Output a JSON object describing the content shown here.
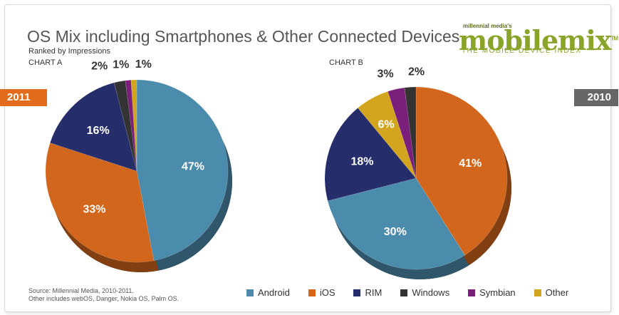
{
  "header": {
    "title": "OS Mix including Smartphones & Other Connected Devices",
    "subtitle": "Ranked by Impressions"
  },
  "logo": {
    "small": "millennial media's",
    "main": "mobilemix",
    "tm": "TM",
    "tagline": "THE MOBILE DEVICE INDEX"
  },
  "footer": {
    "source_line1": "Source: Millennial Media, 2010-2011.",
    "source_line2": "Other includes webOS, Danger, Nokia OS, Palm OS."
  },
  "legend": [
    {
      "name": "Android",
      "color": "#4b8bab"
    },
    {
      "name": "iOS",
      "color": "#d2661c"
    },
    {
      "name": "RIM",
      "color": "#252d6b"
    },
    {
      "name": "Windows",
      "color": "#333333"
    },
    {
      "name": "Symbian",
      "color": "#7a1f7a"
    },
    {
      "name": "Other",
      "color": "#d3a51e"
    }
  ],
  "chart_data": [
    {
      "type": "pie",
      "title": "CHART A",
      "year": "2011",
      "categories": [
        "Android",
        "iOS",
        "RIM",
        "Windows",
        "Symbian",
        "Other"
      ],
      "values": [
        47,
        33,
        16,
        2,
        1,
        1
      ],
      "labels": [
        "47%",
        "33%",
        "16%",
        "2%",
        "1%",
        "1%"
      ]
    },
    {
      "type": "pie",
      "title": "CHART B",
      "year": "2010",
      "categories": [
        "iOS",
        "Android",
        "RIM",
        "Other",
        "Symbian",
        "Windows"
      ],
      "values": [
        41,
        30,
        18,
        6,
        3,
        2
      ],
      "labels": [
        "41%",
        "30%",
        "18%",
        "6%",
        "3%",
        "2%"
      ]
    }
  ]
}
